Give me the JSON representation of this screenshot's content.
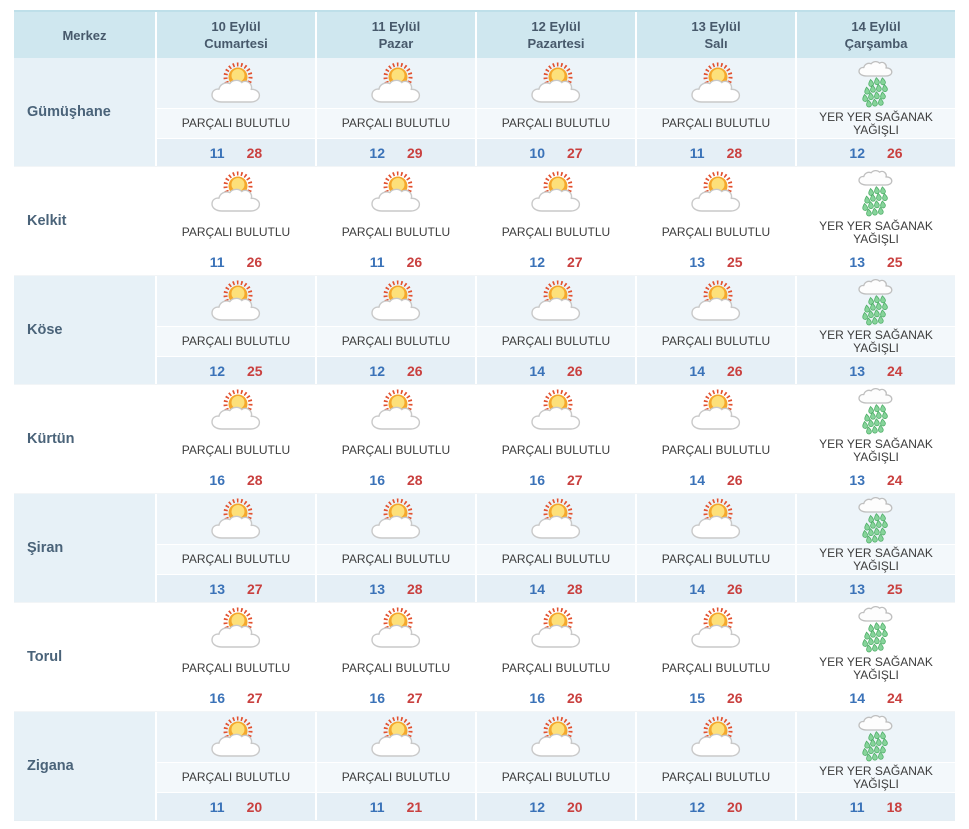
{
  "header": {
    "merkez_label": "Merkez",
    "days": [
      {
        "date": "10 Eylül",
        "day": "Cumartesi"
      },
      {
        "date": "11 Eylül",
        "day": "Pazar"
      },
      {
        "date": "12 Eylül",
        "day": "Pazartesi"
      },
      {
        "date": "13 Eylül",
        "day": "Salı"
      },
      {
        "date": "14 Eylül",
        "day": "Çarşamba"
      }
    ]
  },
  "colors": {
    "header_bg": "#cfe7ef",
    "row_tint": "#e7f1f7",
    "min_temp": "#3a72b8",
    "max_temp": "#c9403f",
    "rain_drop": "#86d49a",
    "sun": "#fbc02d",
    "sun_rays": "#e2512f"
  },
  "rows": [
    {
      "name": "Gümüşhane",
      "cells": [
        {
          "icon": "partly-cloudy",
          "condition": "PARÇALI BULUTLU",
          "min": 11,
          "max": 28
        },
        {
          "icon": "partly-cloudy",
          "condition": "PARÇALI BULUTLU",
          "min": 12,
          "max": 29
        },
        {
          "icon": "partly-cloudy",
          "condition": "PARÇALI BULUTLU",
          "min": 10,
          "max": 27
        },
        {
          "icon": "partly-cloudy",
          "condition": "PARÇALI BULUTLU",
          "min": 11,
          "max": 28
        },
        {
          "icon": "showers",
          "condition": "YER YER SAĞANAK YAĞIŞLI",
          "min": 12,
          "max": 26
        }
      ]
    },
    {
      "name": "Kelkit",
      "cells": [
        {
          "icon": "partly-cloudy",
          "condition": "PARÇALI BULUTLU",
          "min": 11,
          "max": 26
        },
        {
          "icon": "partly-cloudy",
          "condition": "PARÇALI BULUTLU",
          "min": 11,
          "max": 26
        },
        {
          "icon": "partly-cloudy",
          "condition": "PARÇALI BULUTLU",
          "min": 12,
          "max": 27
        },
        {
          "icon": "partly-cloudy",
          "condition": "PARÇALI BULUTLU",
          "min": 13,
          "max": 25
        },
        {
          "icon": "showers",
          "condition": "YER YER SAĞANAK YAĞIŞLI",
          "min": 13,
          "max": 25
        }
      ]
    },
    {
      "name": "Köse",
      "cells": [
        {
          "icon": "partly-cloudy",
          "condition": "PARÇALI BULUTLU",
          "min": 12,
          "max": 25
        },
        {
          "icon": "partly-cloudy",
          "condition": "PARÇALI BULUTLU",
          "min": 12,
          "max": 26
        },
        {
          "icon": "partly-cloudy",
          "condition": "PARÇALI BULUTLU",
          "min": 14,
          "max": 26
        },
        {
          "icon": "partly-cloudy",
          "condition": "PARÇALI BULUTLU",
          "min": 14,
          "max": 26
        },
        {
          "icon": "showers",
          "condition": "YER YER SAĞANAK YAĞIŞLI",
          "min": 13,
          "max": 24
        }
      ]
    },
    {
      "name": "Kürtün",
      "cells": [
        {
          "icon": "partly-cloudy",
          "condition": "PARÇALI BULUTLU",
          "min": 16,
          "max": 28
        },
        {
          "icon": "partly-cloudy",
          "condition": "PARÇALI BULUTLU",
          "min": 16,
          "max": 28
        },
        {
          "icon": "partly-cloudy",
          "condition": "PARÇALI BULUTLU",
          "min": 16,
          "max": 27
        },
        {
          "icon": "partly-cloudy",
          "condition": "PARÇALI BULUTLU",
          "min": 14,
          "max": 26
        },
        {
          "icon": "showers",
          "condition": "YER YER SAĞANAK YAĞIŞLI",
          "min": 13,
          "max": 24
        }
      ]
    },
    {
      "name": "Şiran",
      "cells": [
        {
          "icon": "partly-cloudy",
          "condition": "PARÇALI BULUTLU",
          "min": 13,
          "max": 27
        },
        {
          "icon": "partly-cloudy",
          "condition": "PARÇALI BULUTLU",
          "min": 13,
          "max": 28
        },
        {
          "icon": "partly-cloudy",
          "condition": "PARÇALI BULUTLU",
          "min": 14,
          "max": 28
        },
        {
          "icon": "partly-cloudy",
          "condition": "PARÇALI BULUTLU",
          "min": 14,
          "max": 26
        },
        {
          "icon": "showers",
          "condition": "YER YER SAĞANAK YAĞIŞLI",
          "min": 13,
          "max": 25
        }
      ]
    },
    {
      "name": "Torul",
      "cells": [
        {
          "icon": "partly-cloudy",
          "condition": "PARÇALI BULUTLU",
          "min": 16,
          "max": 27
        },
        {
          "icon": "partly-cloudy",
          "condition": "PARÇALI BULUTLU",
          "min": 16,
          "max": 27
        },
        {
          "icon": "partly-cloudy",
          "condition": "PARÇALI BULUTLU",
          "min": 16,
          "max": 26
        },
        {
          "icon": "partly-cloudy",
          "condition": "PARÇALI BULUTLU",
          "min": 15,
          "max": 26
        },
        {
          "icon": "showers",
          "condition": "YER YER SAĞANAK YAĞIŞLI",
          "min": 14,
          "max": 24
        }
      ]
    },
    {
      "name": "Zigana",
      "cells": [
        {
          "icon": "partly-cloudy",
          "condition": "PARÇALI BULUTLU",
          "min": 11,
          "max": 20
        },
        {
          "icon": "partly-cloudy",
          "condition": "PARÇALI BULUTLU",
          "min": 11,
          "max": 21
        },
        {
          "icon": "partly-cloudy",
          "condition": "PARÇALI BULUTLU",
          "min": 12,
          "max": 20
        },
        {
          "icon": "partly-cloudy",
          "condition": "PARÇALI BULUTLU",
          "min": 12,
          "max": 20
        },
        {
          "icon": "showers",
          "condition": "YER YER SAĞANAK YAĞIŞLI",
          "min": 11,
          "max": 18
        }
      ]
    }
  ]
}
